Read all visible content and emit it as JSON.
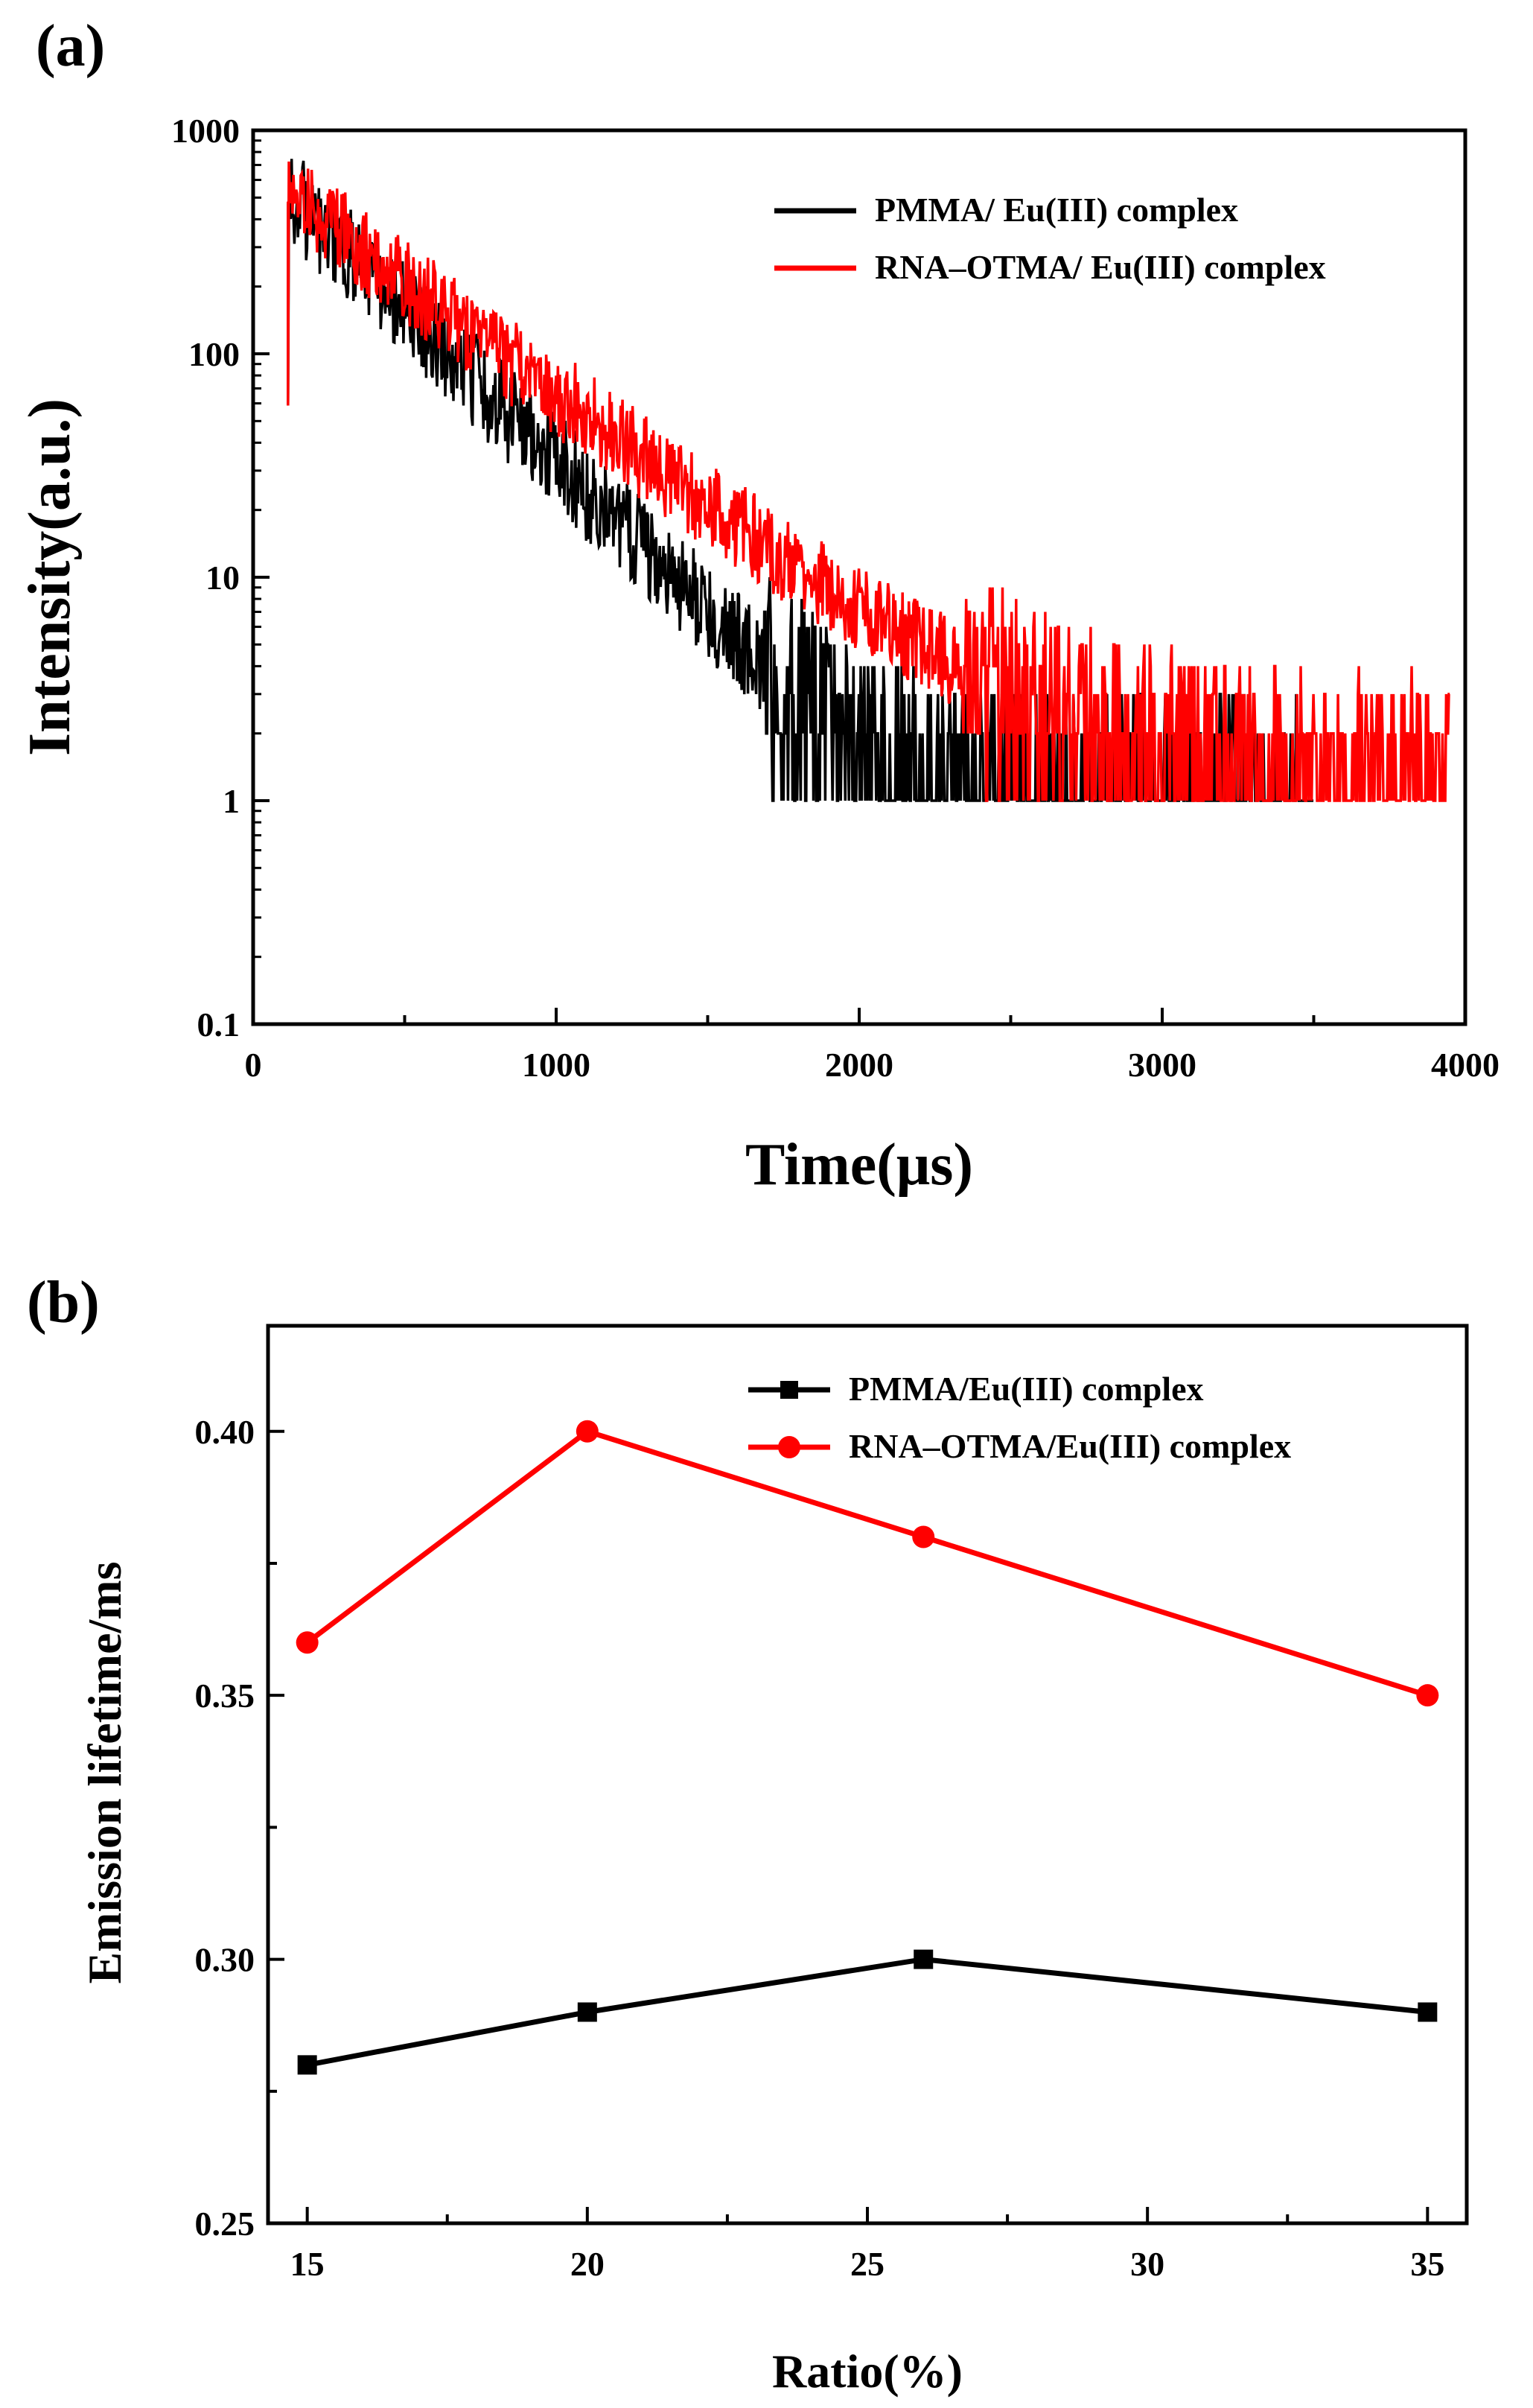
{
  "chart_data": [
    {
      "panel_label": "(a)",
      "type": "line",
      "title": "",
      "xlabel": "Time(μs)",
      "ylabel": "Intensity(a.u.)",
      "xlim": [
        0,
        4000
      ],
      "ylim": [
        0.1,
        1000
      ],
      "yscale": "log",
      "x_ticks": [
        0,
        1000,
        2000,
        3000,
        4000
      ],
      "y_ticks": [
        0.1,
        1,
        10,
        100,
        1000
      ],
      "y_tick_labels": [
        "0.1",
        "1",
        "10",
        "100",
        "1000"
      ],
      "legend_location": "top-right",
      "series": [
        {
          "name": "PMMA/ Eu(III) complex",
          "color": "#000000",
          "x": [
            115,
            115,
            140,
            200,
            300,
            400,
            500,
            600,
            700,
            800,
            900,
            1000,
            1100,
            1200,
            1300,
            1400,
            1500,
            1600,
            1700,
            1800,
            1900,
            2000,
            2100,
            2200,
            2300,
            2400,
            2500,
            2600,
            2700,
            2800,
            2900,
            3000,
            3100,
            3200,
            3300,
            3400,
            3500
          ],
          "values": [
            90,
            470,
            480,
            400,
            290,
            210,
            155,
            110,
            82,
            60,
            44,
            33,
            24,
            17.5,
            13,
            9.5,
            7,
            5.2,
            3.8,
            2.9,
            2.2,
            1.7,
            1.4,
            1.2,
            1.1,
            1.05,
            1,
            1,
            1,
            1,
            1,
            1,
            1,
            1,
            1,
            1,
            1
          ],
          "noise": 0.22
        },
        {
          "name": "RNA–OTMA/ Eu(III) complex",
          "color": "#ff0000",
          "x": [
            115,
            115,
            140,
            200,
            300,
            400,
            500,
            600,
            700,
            800,
            900,
            1000,
            1100,
            1200,
            1300,
            1400,
            1500,
            1600,
            1700,
            1800,
            1900,
            2000,
            2100,
            2200,
            2300,
            2400,
            2500,
            2600,
            2700,
            2800,
            2900,
            3000,
            3100,
            3200,
            3300,
            3400,
            3500,
            3600,
            3700,
            3800,
            3900,
            3950
          ],
          "values": [
            90,
            480,
            490,
            430,
            340,
            265,
            210,
            165,
            130,
            103,
            82,
            66,
            53,
            42,
            33,
            26,
            21,
            17,
            13.5,
            11,
            9,
            7.3,
            6,
            5,
            4.2,
            3.6,
            3.1,
            2.7,
            2.4,
            2.1,
            1.9,
            1.75,
            1.6,
            1.5,
            1.45,
            1.4,
            1.35,
            1.3,
            1.3,
            1.3,
            1.3,
            1.3
          ],
          "noise": 0.2
        }
      ]
    },
    {
      "panel_label": "(b)",
      "type": "line",
      "title": "",
      "xlabel": "Ratio(%)",
      "ylabel": "Emission lifetime/ms",
      "xlim": [
        14.3,
        35.7
      ],
      "ylim": [
        0.25,
        0.42
      ],
      "x_ticks": [
        15,
        20,
        25,
        30,
        35
      ],
      "y_ticks": [
        0.25,
        0.3,
        0.35,
        0.4
      ],
      "y_tick_labels": [
        "0.25",
        "0.30",
        "0.35",
        "0.40"
      ],
      "legend_location": "top-right",
      "series": [
        {
          "name": "PMMA/Eu(III) complex",
          "color": "#000000",
          "marker": "square",
          "x": [
            15,
            20,
            26,
            35
          ],
          "values": [
            0.28,
            0.29,
            0.3,
            0.29
          ]
        },
        {
          "name": "RNA–OTMA/Eu(III) complex",
          "color": "#ff0000",
          "marker": "circle",
          "x": [
            15,
            20,
            26,
            35
          ],
          "values": [
            0.36,
            0.4,
            0.38,
            0.35
          ]
        }
      ]
    }
  ]
}
